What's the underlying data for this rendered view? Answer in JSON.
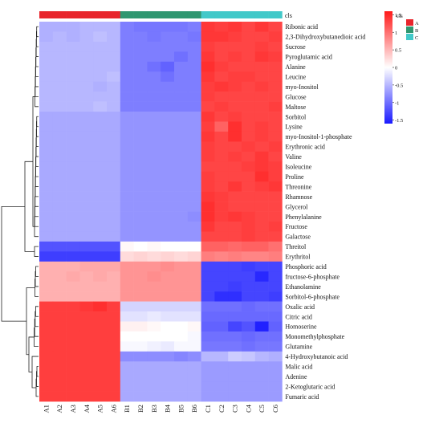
{
  "chart_data": {
    "type": "heatmap",
    "title": "",
    "columns": [
      "A1",
      "A2",
      "A3",
      "A4",
      "A5",
      "A6",
      "B1",
      "B2",
      "B3",
      "B4",
      "B5",
      "B6",
      "C1",
      "C2",
      "C3",
      "C4",
      "C5",
      "C6"
    ],
    "column_groups": [
      "A",
      "A",
      "A",
      "A",
      "A",
      "A",
      "B",
      "B",
      "B",
      "B",
      "B",
      "B",
      "C",
      "C",
      "C",
      "C",
      "C",
      "C"
    ],
    "annotation_label": "cls",
    "group_colors": {
      "A": "#e8252c",
      "B": "#2f9770",
      "C": "#42c9c9"
    },
    "legend": {
      "title": "cls",
      "groups": [
        "A",
        "B",
        "C"
      ],
      "scale_ticks": [
        1.5,
        1,
        0.5,
        0,
        -0.5,
        -1,
        -1.5
      ],
      "scale_range": [
        -1.6,
        1.6
      ],
      "colors": {
        "low": "#1a1aff",
        "mid": "#ffffff",
        "high": "#ff1a1a"
      }
    },
    "rows": [
      "Ribonic acid",
      "2,3-Dihydroxybutanedioic acid",
      "Sucrose",
      "Pyroglutamic acid",
      "Alanine",
      "Leucine",
      "myo-Inositol",
      "Glucose",
      "Maltose",
      "Sorbitol",
      "Lysine",
      "myo-Inositol-1-phosphate",
      "Erythronic acid",
      "Valine",
      "Isoleucine",
      "Proline",
      "Threonine",
      "Rhamnose",
      "Glycerol",
      "Phenylalanine",
      "Fructose",
      "Galactose",
      "Threitol",
      "Erythritol",
      "Phosphoric acid",
      "fructose-6-phosphate",
      "Ethanolamine",
      "Sorbitol-6-phosphate",
      "Oxalic acid",
      "Citric acid",
      "Homoserine",
      "Monomethylphosphate",
      "Glutamine",
      "4-Hydroxybutanoic acid",
      "Malic acid",
      "Adenine",
      "2-Ketoglutaric acid",
      "Fumaric acid"
    ],
    "values": [
      [
        -0.55,
        -0.55,
        -0.55,
        -0.5,
        -0.5,
        -0.5,
        -0.9,
        -0.95,
        -0.95,
        -0.95,
        -0.95,
        -0.9,
        1.4,
        1.35,
        1.4,
        1.3,
        1.4,
        1.3
      ],
      [
        -0.55,
        -0.5,
        -0.55,
        -0.5,
        -0.45,
        -0.5,
        -0.9,
        -0.9,
        -0.95,
        -0.9,
        -0.9,
        -0.95,
        1.4,
        1.4,
        1.35,
        1.3,
        1.3,
        1.35
      ],
      [
        -0.5,
        -0.5,
        -0.5,
        -0.5,
        -0.5,
        -0.5,
        -0.9,
        -0.9,
        -0.9,
        -0.9,
        -0.9,
        -0.9,
        1.35,
        1.3,
        1.3,
        1.3,
        1.35,
        1.3
      ],
      [
        -0.5,
        -0.5,
        -0.5,
        -0.5,
        -0.5,
        -0.5,
        -0.9,
        -0.9,
        -0.9,
        -0.9,
        -1.0,
        -0.9,
        1.4,
        1.3,
        1.35,
        1.3,
        1.4,
        1.35
      ],
      [
        -0.5,
        -0.5,
        -0.5,
        -0.5,
        -0.5,
        -0.5,
        -0.9,
        -0.9,
        -1.0,
        -1.1,
        -0.9,
        -0.9,
        1.45,
        1.35,
        1.3,
        1.3,
        1.3,
        1.3
      ],
      [
        -0.5,
        -0.5,
        -0.5,
        -0.5,
        -0.5,
        -0.45,
        -0.9,
        -0.9,
        -0.9,
        -1.0,
        -0.9,
        -0.9,
        1.4,
        1.3,
        1.35,
        1.35,
        1.3,
        1.3
      ],
      [
        -0.5,
        -0.5,
        -0.5,
        -0.5,
        -0.55,
        -0.5,
        -0.9,
        -0.9,
        -0.9,
        -0.9,
        -0.9,
        -0.9,
        1.35,
        1.4,
        1.35,
        1.3,
        1.35,
        1.3
      ],
      [
        -0.5,
        -0.5,
        -0.5,
        -0.5,
        -0.5,
        -0.5,
        -0.9,
        -0.9,
        -0.9,
        -0.9,
        -0.9,
        -0.9,
        1.35,
        1.3,
        1.3,
        1.3,
        1.3,
        1.3
      ],
      [
        -0.5,
        -0.5,
        -0.5,
        -0.5,
        -0.45,
        -0.5,
        -0.9,
        -0.9,
        -0.9,
        -0.9,
        -0.9,
        -0.9,
        1.3,
        1.35,
        1.3,
        1.3,
        1.3,
        1.35
      ],
      [
        -0.6,
        -0.6,
        -0.6,
        -0.6,
        -0.6,
        -0.6,
        -0.75,
        -0.75,
        -0.75,
        -0.75,
        -0.75,
        -0.75,
        1.4,
        1.3,
        1.35,
        1.3,
        1.3,
        1.3
      ],
      [
        -0.6,
        -0.6,
        -0.6,
        -0.6,
        -0.6,
        -0.6,
        -0.75,
        -0.75,
        -0.75,
        -0.75,
        -0.75,
        -0.75,
        1.35,
        1.1,
        1.45,
        1.3,
        1.35,
        1.3
      ],
      [
        -0.6,
        -0.6,
        -0.6,
        -0.6,
        -0.6,
        -0.6,
        -0.75,
        -0.75,
        -0.75,
        -0.75,
        -0.75,
        -0.75,
        1.4,
        1.3,
        1.45,
        1.3,
        1.35,
        1.3
      ],
      [
        -0.6,
        -0.6,
        -0.6,
        -0.6,
        -0.6,
        -0.6,
        -0.75,
        -0.75,
        -0.75,
        -0.75,
        -0.75,
        -0.75,
        1.35,
        1.3,
        1.3,
        1.35,
        1.3,
        1.35
      ],
      [
        -0.6,
        -0.6,
        -0.6,
        -0.6,
        -0.6,
        -0.6,
        -0.75,
        -0.75,
        -0.75,
        -0.75,
        -0.75,
        -0.75,
        1.35,
        1.3,
        1.35,
        1.3,
        1.4,
        1.3
      ],
      [
        -0.6,
        -0.6,
        -0.6,
        -0.6,
        -0.6,
        -0.6,
        -0.75,
        -0.75,
        -0.75,
        -0.75,
        -0.75,
        -0.75,
        1.3,
        1.3,
        1.3,
        1.35,
        1.4,
        1.35
      ],
      [
        -0.6,
        -0.6,
        -0.6,
        -0.6,
        -0.6,
        -0.6,
        -0.75,
        -0.75,
        -0.75,
        -0.75,
        -0.75,
        -0.75,
        1.35,
        1.3,
        1.3,
        1.3,
        1.45,
        1.35
      ],
      [
        -0.6,
        -0.6,
        -0.6,
        -0.6,
        -0.6,
        -0.6,
        -0.75,
        -0.75,
        -0.75,
        -0.75,
        -0.75,
        -0.75,
        1.35,
        1.3,
        1.4,
        1.3,
        1.35,
        1.4
      ],
      [
        -0.6,
        -0.6,
        -0.6,
        -0.6,
        -0.6,
        -0.6,
        -0.75,
        -0.75,
        -0.75,
        -0.75,
        -0.75,
        -0.75,
        1.4,
        1.35,
        1.3,
        1.3,
        1.3,
        1.3
      ],
      [
        -0.6,
        -0.6,
        -0.6,
        -0.6,
        -0.6,
        -0.6,
        -0.75,
        -0.75,
        -0.75,
        -0.75,
        -0.75,
        -0.75,
        1.45,
        1.35,
        1.3,
        1.3,
        1.3,
        1.3
      ],
      [
        -0.6,
        -0.6,
        -0.6,
        -0.6,
        -0.6,
        -0.6,
        -0.75,
        -0.75,
        -0.75,
        -0.75,
        -0.75,
        -0.8,
        1.45,
        1.35,
        1.4,
        1.35,
        1.3,
        1.3
      ],
      [
        -0.6,
        -0.6,
        -0.6,
        -0.6,
        -0.6,
        -0.6,
        -0.75,
        -0.75,
        -0.75,
        -0.75,
        -0.75,
        -0.75,
        1.4,
        1.3,
        1.3,
        1.35,
        1.3,
        1.35
      ],
      [
        -0.6,
        -0.6,
        -0.6,
        -0.6,
        -0.6,
        -0.6,
        -0.75,
        -0.75,
        -0.75,
        -0.75,
        -0.75,
        -0.75,
        1.3,
        1.3,
        1.3,
        1.35,
        1.3,
        1.3
      ],
      [
        -1.2,
        -1.2,
        -1.2,
        -1.2,
        -1.2,
        -1.2,
        0.05,
        0.0,
        0.05,
        0.0,
        0.0,
        0.0,
        1.1,
        1.1,
        1.05,
        1.1,
        1.1,
        1.0
      ],
      [
        -1.35,
        -1.35,
        -1.35,
        -1.35,
        -1.35,
        -1.35,
        0.25,
        0.3,
        0.25,
        0.3,
        0.25,
        0.3,
        0.9,
        0.85,
        0.9,
        0.85,
        0.85,
        0.9
      ],
      [
        0.55,
        0.55,
        0.55,
        0.6,
        0.6,
        0.6,
        0.75,
        0.75,
        0.75,
        0.8,
        0.75,
        0.75,
        -1.3,
        -1.3,
        -1.3,
        -1.35,
        -1.3,
        -1.3
      ],
      [
        0.55,
        0.55,
        0.6,
        0.55,
        0.6,
        0.55,
        0.75,
        0.75,
        0.8,
        0.75,
        0.75,
        0.75,
        -1.3,
        -1.3,
        -1.3,
        -1.3,
        -1.5,
        -1.3
      ],
      [
        0.55,
        0.55,
        0.55,
        0.55,
        0.55,
        0.55,
        0.75,
        0.75,
        0.75,
        0.75,
        0.75,
        0.75,
        -1.3,
        -1.3,
        -1.35,
        -1.3,
        -1.3,
        -1.3
      ],
      [
        0.55,
        0.55,
        0.55,
        0.55,
        0.55,
        0.55,
        0.75,
        0.75,
        0.75,
        0.75,
        0.75,
        0.75,
        -1.3,
        -1.45,
        -1.45,
        -1.3,
        -1.3,
        -1.35
      ],
      [
        1.35,
        1.35,
        1.35,
        1.4,
        1.45,
        1.35,
        -0.3,
        -0.3,
        -0.3,
        -0.3,
        -0.3,
        -0.3,
        -1.0,
        -1.0,
        -1.0,
        -1.05,
        -1.0,
        -1.0
      ],
      [
        1.35,
        1.35,
        1.35,
        1.35,
        1.35,
        1.35,
        -0.2,
        -0.2,
        -0.15,
        -0.2,
        -0.2,
        -0.2,
        -1.05,
        -1.05,
        -1.05,
        -1.05,
        -1.05,
        -1.05
      ],
      [
        1.35,
        1.35,
        1.35,
        1.35,
        1.35,
        1.35,
        0.1,
        0.1,
        0.05,
        0.0,
        0.0,
        0.05,
        -1.1,
        -1.1,
        -1.3,
        -1.2,
        -1.55,
        -1.1
      ],
      [
        1.35,
        1.35,
        1.35,
        1.35,
        1.35,
        1.35,
        0.0,
        0.0,
        0.0,
        0.0,
        0.0,
        -0.05,
        -1.0,
        -1.0,
        -1.0,
        -1.05,
        -1.0,
        -1.0
      ],
      [
        1.35,
        1.35,
        1.35,
        1.35,
        1.35,
        1.35,
        -0.05,
        -0.05,
        -0.1,
        -0.15,
        -0.05,
        -0.05,
        -0.95,
        -0.95,
        -0.95,
        -1.0,
        -0.95,
        -0.95
      ],
      [
        1.35,
        1.35,
        1.35,
        1.35,
        1.35,
        1.35,
        -0.8,
        -0.8,
        -0.8,
        -0.8,
        -0.85,
        -0.8,
        -0.5,
        -0.5,
        -0.35,
        -0.4,
        -0.5,
        -0.55
      ],
      [
        1.35,
        1.35,
        1.35,
        1.35,
        1.35,
        1.35,
        -0.6,
        -0.6,
        -0.6,
        -0.6,
        -0.6,
        -0.6,
        -0.7,
        -0.7,
        -0.7,
        -0.7,
        -0.7,
        -0.7
      ],
      [
        1.35,
        1.35,
        1.35,
        1.35,
        1.35,
        1.35,
        -0.6,
        -0.6,
        -0.6,
        -0.6,
        -0.6,
        -0.6,
        -0.7,
        -0.7,
        -0.7,
        -0.7,
        -0.7,
        -0.7
      ],
      [
        1.35,
        1.35,
        1.35,
        1.35,
        1.35,
        1.35,
        -0.6,
        -0.6,
        -0.6,
        -0.6,
        -0.6,
        -0.6,
        -0.7,
        -0.7,
        -0.7,
        -0.7,
        -0.7,
        -0.7
      ],
      [
        1.35,
        1.35,
        1.35,
        1.35,
        1.35,
        1.35,
        -0.6,
        -0.6,
        -0.6,
        -0.6,
        -0.6,
        -0.6,
        -0.7,
        -0.7,
        -0.7,
        -0.7,
        -0.7,
        -0.7
      ]
    ]
  }
}
